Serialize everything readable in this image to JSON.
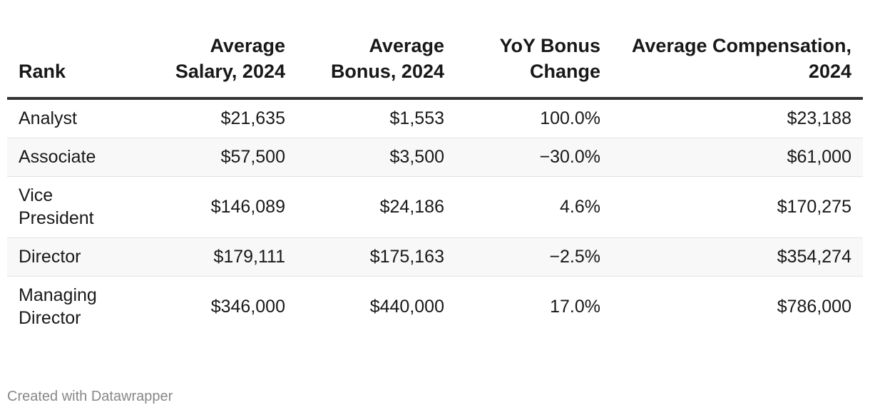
{
  "chart_data": {
    "type": "table",
    "columns": [
      "Rank",
      "Average Salary, 2024",
      "Average Bonus, 2024",
      "YoY Bonus Change",
      "Average Compensation, 2024"
    ],
    "rows": [
      {
        "rank": "Analyst",
        "salary": "$21,635",
        "bonus": "$1,553",
        "yoy": "100.0%",
        "comp": "$23,188"
      },
      {
        "rank": "Associate",
        "salary": "$57,500",
        "bonus": "$3,500",
        "yoy": "−30.0%",
        "comp": "$61,000"
      },
      {
        "rank": "Vice President",
        "salary": "$146,089",
        "bonus": "$24,186",
        "yoy": "4.6%",
        "comp": "$170,275"
      },
      {
        "rank": "Director",
        "salary": "$179,111",
        "bonus": "$175,163",
        "yoy": "−2.5%",
        "comp": "$354,274"
      },
      {
        "rank": "Managing Director",
        "salary": "$346,000",
        "bonus": "$440,000",
        "yoy": "17.0%",
        "comp": "$786,000"
      }
    ]
  },
  "footer": {
    "credit": "Created with Datawrapper"
  }
}
